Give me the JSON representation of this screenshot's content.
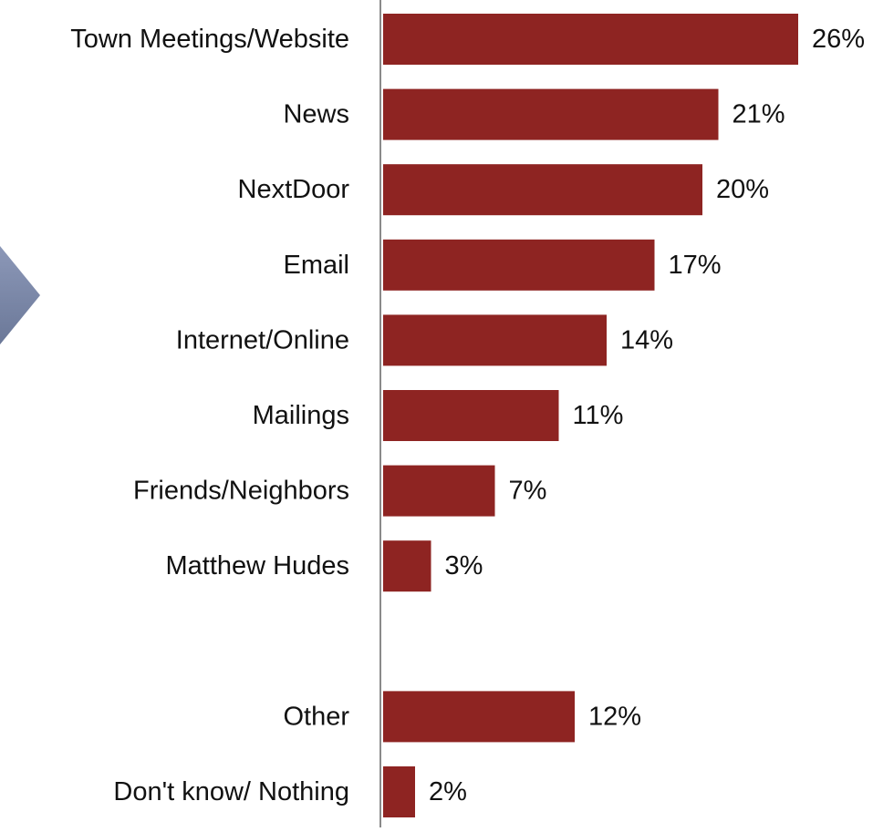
{
  "chart_data": {
    "type": "bar",
    "orientation": "horizontal",
    "categories": [
      "Town Meetings/Website",
      "News",
      "NextDoor",
      "Email",
      "Internet/Online",
      "Mailings",
      "Friends/Neighbors",
      "Matthew Hudes",
      "",
      "Other",
      "Don't know/ Nothing"
    ],
    "values": [
      26,
      21,
      20,
      17,
      14,
      11,
      7,
      3,
      null,
      12,
      2
    ],
    "value_labels": [
      "26%",
      "21%",
      "20%",
      "17%",
      "14%",
      "11%",
      "7%",
      "3%",
      "",
      "12%",
      "2%"
    ],
    "unit": "%",
    "xlim": [
      0,
      26
    ],
    "title": "",
    "xlabel": "",
    "ylabel": "",
    "grid": false,
    "legend": "none",
    "bar_color": "#8E2422"
  },
  "decoration": {
    "arrow_color": "#7B88A8",
    "arrow_icon": "chevron-right-icon"
  }
}
